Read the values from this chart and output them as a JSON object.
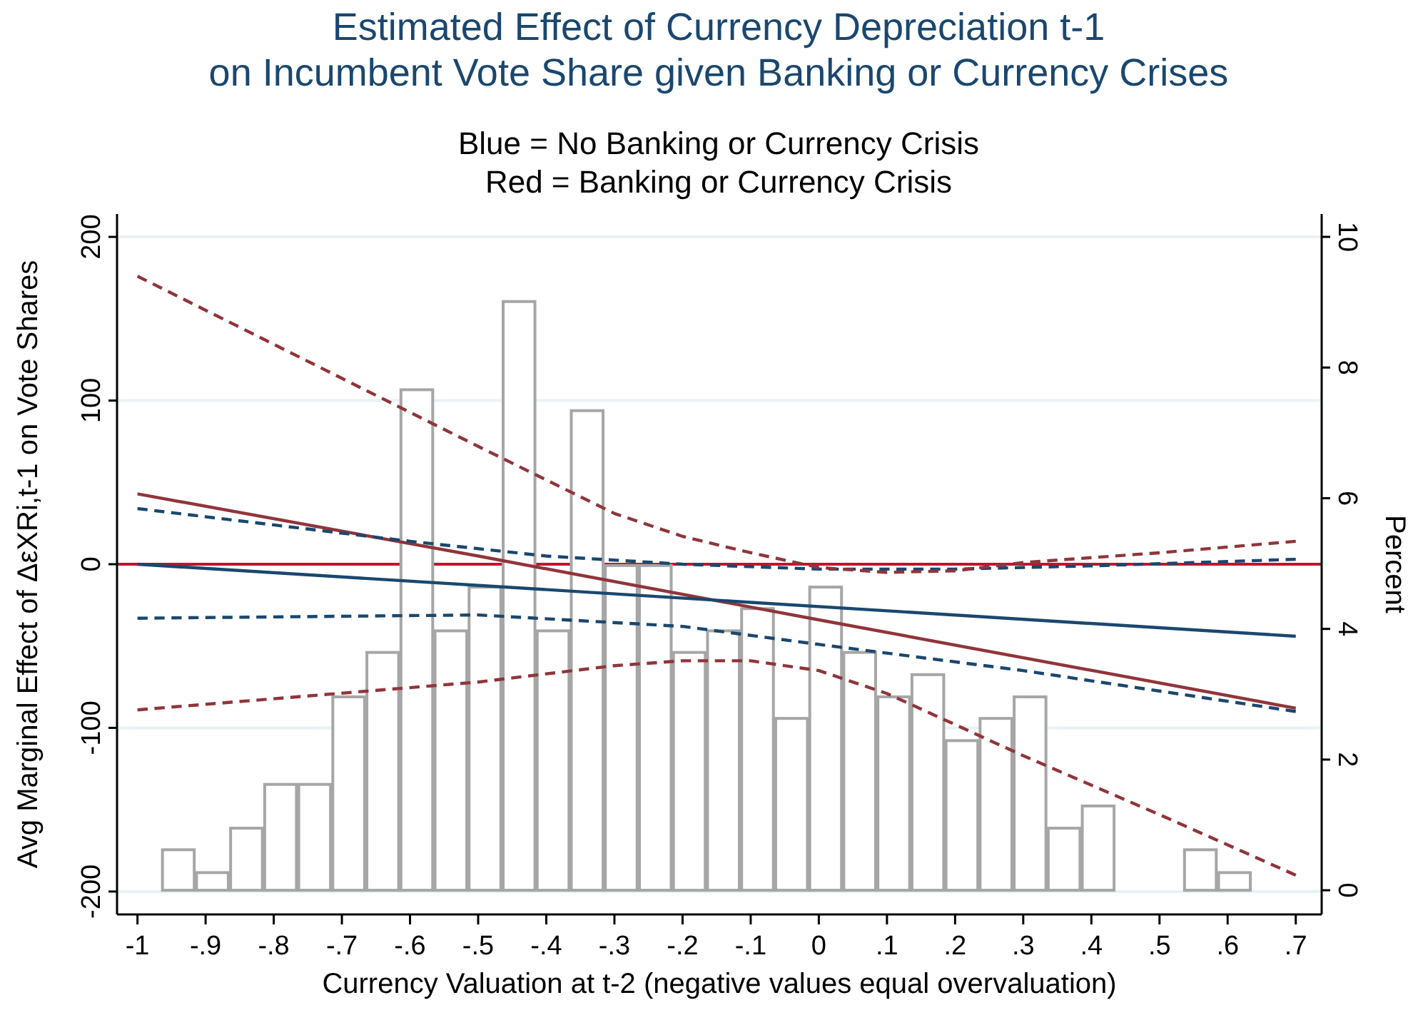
{
  "chart_data": {
    "type": "line",
    "title": "Estimated Effect of Currency Depreciation t-1\non Incumbent Vote Share given Banking or Currency Crises",
    "subtitle": "Blue = No Banking or Currency Crisis\nRed = Banking or Currency Crisis",
    "xlabel": "Currency Valuation at t-2 (negative values equal overvaluation)",
    "ylabel": "Avg Marginal Effect of ΔεXRi,t-1 on Vote Shares",
    "y2label": "Percent",
    "xlim": [
      -1.03,
      0.738
    ],
    "xticks": [
      -1,
      {
        "value": -0.9,
        "label": "-.9"
      },
      {
        "value": -0.8,
        "label": "-.8"
      },
      {
        "value": -0.7,
        "label": "-.7"
      },
      {
        "value": -0.6,
        "label": "-.6"
      },
      {
        "value": -0.5,
        "label": "-.5"
      },
      {
        "value": -0.4,
        "label": "-.4"
      },
      {
        "value": -0.3,
        "label": "-.3"
      },
      {
        "value": -0.2,
        "label": "-.2"
      },
      {
        "value": -0.1,
        "label": "-.1"
      },
      0,
      {
        "value": 0.1,
        "label": ".1"
      },
      {
        "value": 0.2,
        "label": ".2"
      },
      {
        "value": 0.3,
        "label": ".3"
      },
      {
        "value": 0.4,
        "label": ".4"
      },
      {
        "value": 0.5,
        "label": ".5"
      },
      {
        "value": 0.6,
        "label": ".6"
      },
      {
        "value": 0.7,
        "label": ".7"
      }
    ],
    "ylim": [
      -214,
      214
    ],
    "yticks": [
      -200,
      -100,
      0,
      100,
      200
    ],
    "y2lim": [
      -0.37,
      10.35
    ],
    "y2ticks": [
      0,
      2,
      4,
      6,
      8,
      10
    ],
    "grid": "y",
    "series": [
      {
        "type": "histogram",
        "axis": "y2",
        "color": "#a6a6a6",
        "bins": [
          -0.965,
          -0.915,
          -0.865,
          -0.815,
          -0.765,
          -0.715,
          -0.665,
          -0.615,
          -0.565,
          -0.515,
          -0.465,
          -0.415,
          -0.365,
          -0.315,
          -0.265,
          -0.215,
          -0.165,
          -0.115,
          -0.065,
          -0.015,
          0.035,
          0.085,
          0.135,
          0.185,
          0.235,
          0.285,
          0.335,
          0.385,
          0.435,
          0.485,
          0.535,
          0.585,
          0.635
        ],
        "values": [
          0.62,
          0.27,
          0.95,
          1.62,
          1.62,
          2.96,
          3.64,
          7.66,
          3.97,
          4.64,
          9.01,
          3.97,
          7.34,
          4.97,
          4.97,
          3.64,
          3.97,
          4.31,
          2.63,
          4.64,
          3.64,
          2.96,
          3.3,
          2.29,
          2.63,
          2.96,
          0.95,
          1.29,
          0,
          0,
          0.62,
          0.27
        ]
      },
      {
        "color": "#90353b",
        "line_style": "solid",
        "x": [
          -1,
          -0.5,
          0,
          0.7
        ],
        "values": [
          43,
          5,
          -34,
          -88
        ]
      },
      {
        "color": "#1a476f",
        "line_style": "solid",
        "x": [
          -1,
          0.7
        ],
        "values": [
          0,
          -44
        ]
      },
      {
        "color": "#1a476f",
        "line_style": "dashed",
        "x": [
          -1,
          -0.8,
          -0.6,
          -0.4,
          -0.2,
          0,
          0.2,
          0.4,
          0.7
        ],
        "values": [
          34,
          24,
          14,
          5,
          0,
          -3,
          -3,
          -1,
          3
        ]
      },
      {
        "color": "#1a476f",
        "line_style": "dashed",
        "x": [
          -1,
          -0.5,
          -0.2,
          0,
          0.3,
          0.7
        ],
        "values": [
          -33,
          -31,
          -38,
          -49,
          -65,
          -90
        ]
      },
      {
        "color": "#90353b",
        "line_style": "dashed",
        "x": [
          -1,
          -0.5,
          -0.3,
          -0.2,
          -0.1,
          0,
          0.1,
          0.2,
          0.3,
          0.5,
          0.7
        ],
        "values": [
          176,
          72,
          31,
          17,
          7,
          -2,
          -5,
          -4,
          1,
          7,
          14
        ]
      },
      {
        "color": "#90353b",
        "line_style": "dashed",
        "x": [
          -1,
          -0.5,
          -0.3,
          -0.2,
          -0.1,
          0,
          0.1,
          0.2,
          0.3,
          0.5,
          0.7
        ],
        "values": [
          -89,
          -72,
          -62,
          -59,
          -59,
          -65,
          -79,
          -98,
          -117,
          -153,
          -190
        ]
      }
    ],
    "ref_lines": [
      {
        "axis": "y",
        "value": 0,
        "color": "#c8102e"
      }
    ]
  }
}
